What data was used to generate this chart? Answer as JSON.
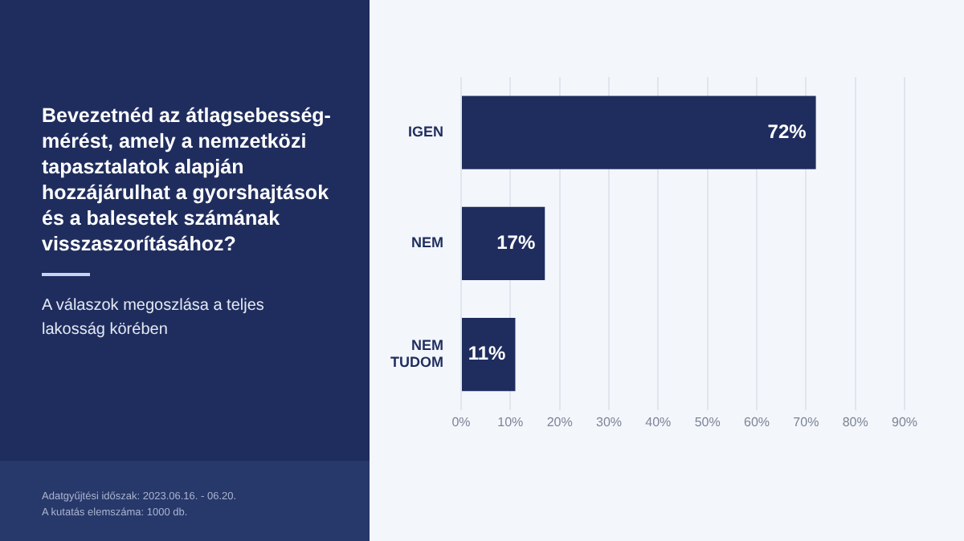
{
  "chart_data": {
    "type": "bar",
    "orientation": "horizontal",
    "title": "Bevezetnéd az átlagsebesség-mérést, amely a nemzetközi tapasztalatok alapján hozzájárulhat a gyorshajtások és a balesetek számának visszaszorításához?",
    "subtitle": "A válaszok megoszlása a teljes lakosság körében",
    "annotations": [
      "Adatgyűjtési időszak: 2023.06.16. - 06.20.",
      "A kutatás elemszáma: 1000 db."
    ],
    "categories": [
      "IGEN",
      "NEM",
      "NEM TUDOM"
    ],
    "values": [
      72,
      17,
      11
    ],
    "color": "#1f2d5e",
    "value_labels": [
      "72%",
      "17%",
      "11%"
    ],
    "xlim": [
      0,
      90
    ],
    "xticks": [
      {
        "value": 0,
        "label": "0%"
      },
      {
        "value": 10,
        "label": "10%"
      },
      {
        "value": 20,
        "label": "20%"
      },
      {
        "value": 30,
        "label": "30%"
      },
      {
        "value": 40,
        "label": "40%"
      },
      {
        "value": 50,
        "label": "50%"
      },
      {
        "value": 60,
        "label": "60%"
      },
      {
        "value": 70,
        "label": "70%"
      },
      {
        "value": 80,
        "label": "80%"
      },
      {
        "value": 90,
        "label": "90%"
      }
    ],
    "grid": "x",
    "legend": false
  }
}
